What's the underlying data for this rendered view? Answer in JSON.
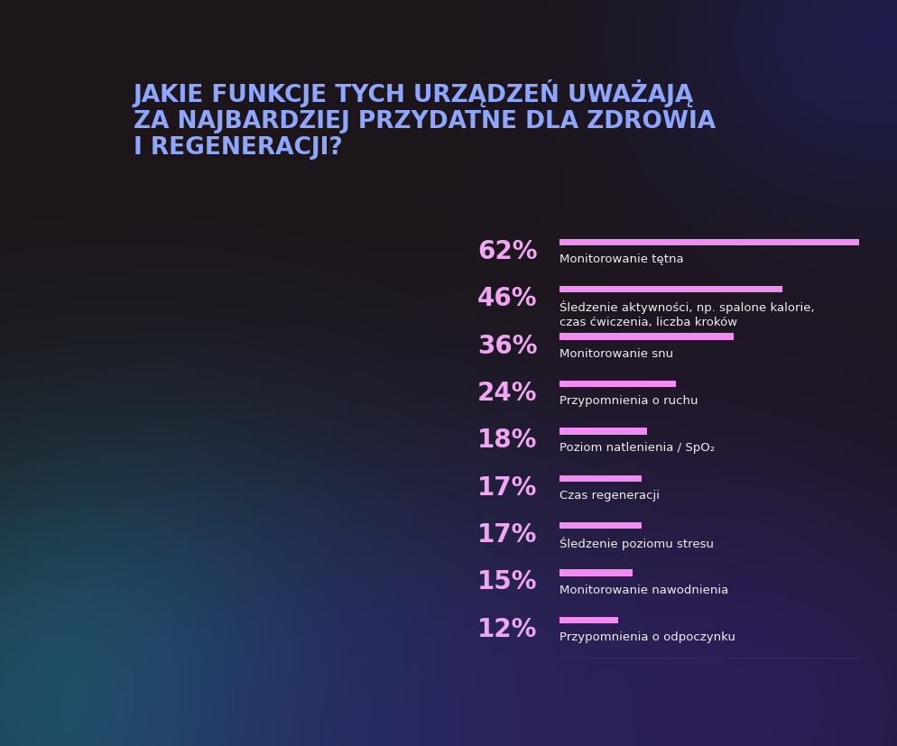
{
  "chart_data": {
    "type": "bar",
    "orientation": "horizontal",
    "title": "JAKIE FUNKCJE TYCH URZĄDZEŃ UWAŻAJĄ\nZA NAJBARDZIEJ PRZYDATNE DLA ZDROWIA\nI REGENERACJI?",
    "categories": [
      "Monitorowanie tętna",
      "Śledzenie aktywności, np. spalone kalorie,\nczas ćwiczenia, liczba kroków",
      "Monitorowanie snu",
      "Przypomnienia o ruchu",
      "Poziom natlenienia / SpO₂",
      "Czas regeneracji",
      "Śledzenie poziomu stresu",
      "Monitorowanie nawodnienia",
      "Przypomnienia o odpoczynku"
    ],
    "values": [
      62,
      46,
      36,
      24,
      18,
      17,
      17,
      15,
      12
    ],
    "value_labels": [
      "62%",
      "46%",
      "36%",
      "24%",
      "18%",
      "17%",
      "17%",
      "15%",
      "12%"
    ],
    "data_labels": true,
    "color": "#f28cf2",
    "xlim": [
      0,
      62
    ],
    "tick_labels": false,
    "grid": false
  }
}
